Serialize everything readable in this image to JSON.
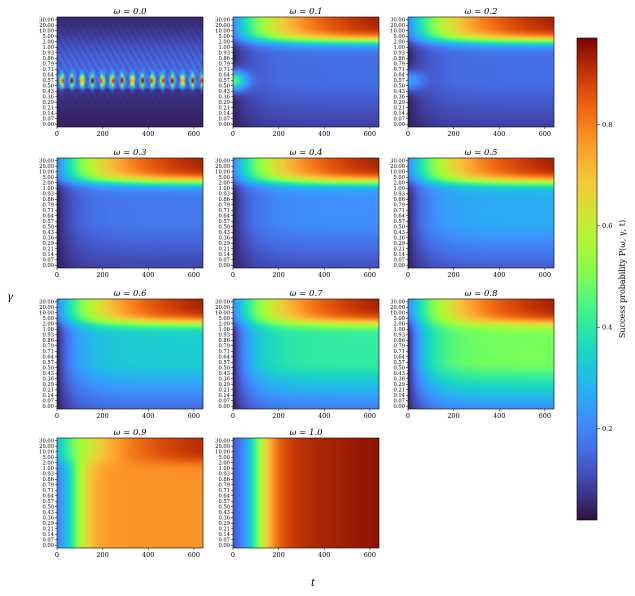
{
  "chart_data": {
    "type": "heatmap",
    "panel_titles": [
      "ω = 0.0",
      "ω = 0.1",
      "ω = 0.2",
      "ω = 0.3",
      "ω = 0.4",
      "ω = 0.5",
      "ω = 0.6",
      "ω = 0.7",
      "ω = 0.8",
      "ω = 0.9",
      "ω = 1.0"
    ],
    "omega": [
      0.0,
      0.1,
      0.2,
      0.3,
      0.4,
      0.5,
      0.6,
      0.7,
      0.8,
      0.9,
      1.0
    ],
    "ylabel": "γ",
    "xlabel": "t",
    "y_tick_labels": [
      "0.00",
      "0.07",
      "0.14",
      "0.21",
      "0.29",
      "0.36",
      "0.43",
      "0.50",
      "0.57",
      "0.64",
      "0.71",
      "0.79",
      "0.86",
      "0.93",
      "1.00",
      "2.00",
      "5.00",
      "10.00",
      "20.00",
      "30.00"
    ],
    "x_tick_labels": [
      "0",
      "200",
      "400",
      "600"
    ],
    "x_ticks": [
      0,
      200,
      400,
      600
    ],
    "xlim": [
      0,
      640
    ],
    "colorbar": {
      "label": "Success probability P(ω, γ, t)",
      "tick_labels": [
        "0.2",
        "0.4",
        "0.6",
        "0.8"
      ],
      "ticks": [
        0.2,
        0.4,
        0.6,
        0.8
      ],
      "range": [
        0.02,
        0.97
      ],
      "colormap": "turbo"
    }
  }
}
